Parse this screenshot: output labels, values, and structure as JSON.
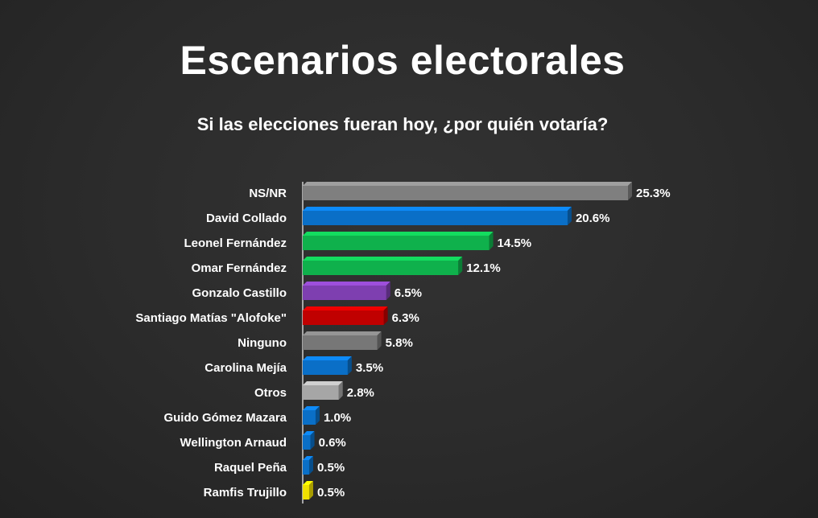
{
  "title": "Escenarios electorales",
  "subtitle": "Si las elecciones fueran hoy, ¿por quién votaría?",
  "chart_data": {
    "type": "bar",
    "orientation": "horizontal",
    "categories": [
      "NS/NR",
      "David Collado",
      "Leonel Fernández",
      "Omar Fernández",
      "Gonzalo Castillo",
      "Santiago Matías \"Alofoke\"",
      "Ninguno",
      "Carolina Mejía",
      "Otros",
      "Guido Gómez Mazara",
      "Wellington Arnaud",
      "Raquel Peña",
      "Ramfis Trujillo"
    ],
    "values": [
      25.3,
      20.6,
      14.5,
      12.1,
      6.5,
      6.3,
      5.8,
      3.5,
      2.8,
      1.0,
      0.6,
      0.5,
      0.5
    ],
    "value_labels": [
      "25.3%",
      "20.6%",
      "14.5%",
      "12.1%",
      "6.5%",
      "6.3%",
      "5.8%",
      "3.5%",
      "2.8%",
      "1.0%",
      "0.6%",
      "0.5%",
      "0.5%"
    ],
    "colors": [
      "#7f7f7f",
      "#0a6fc7",
      "#0fb14c",
      "#0fb14c",
      "#7e3fb0",
      "#c00000",
      "#777777",
      "#0a6fc7",
      "#a6a6a6",
      "#0a6fc7",
      "#0a6fc7",
      "#0a6fc7",
      "#f0e000"
    ],
    "xlim": [
      0,
      25.3
    ],
    "grid": false,
    "legend": "none",
    "style": "3d"
  }
}
